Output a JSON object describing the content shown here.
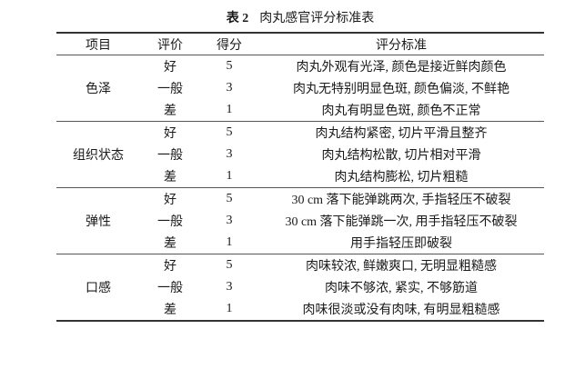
{
  "caption": {
    "label": "表 2",
    "title": "肉丸感官评分标准表"
  },
  "headers": [
    "项目",
    "评价",
    "得分",
    "评分标准"
  ],
  "groups": [
    {
      "name": "色泽",
      "rows": [
        {
          "rating": "好",
          "score": "5",
          "criteria": "肉丸外观有光泽, 颜色是接近鲜肉颜色"
        },
        {
          "rating": "一般",
          "score": "3",
          "criteria": "肉丸无特别明显色斑, 颜色偏淡, 不鲜艳"
        },
        {
          "rating": "差",
          "score": "1",
          "criteria": "肉丸有明显色斑, 颜色不正常"
        }
      ]
    },
    {
      "name": "组织状态",
      "rows": [
        {
          "rating": "好",
          "score": "5",
          "criteria": "肉丸结构紧密, 切片平滑且整齐"
        },
        {
          "rating": "一般",
          "score": "3",
          "criteria": "肉丸结构松散, 切片相对平滑"
        },
        {
          "rating": "差",
          "score": "1",
          "criteria": "肉丸结构膨松, 切片粗糙"
        }
      ]
    },
    {
      "name": "弹性",
      "rows": [
        {
          "rating": "好",
          "score": "5",
          "criteria": "30 cm 落下能弹跳两次, 手指轻压不破裂"
        },
        {
          "rating": "一般",
          "score": "3",
          "criteria": "30 cm 落下能弹跳一次, 用手指轻压不破裂"
        },
        {
          "rating": "差",
          "score": "1",
          "criteria": "用手指轻压即破裂"
        }
      ]
    },
    {
      "name": "口感",
      "rows": [
        {
          "rating": "好",
          "score": "5",
          "criteria": "肉味较浓, 鲜嫩爽口, 无明显粗糙感"
        },
        {
          "rating": "一般",
          "score": "3",
          "criteria": "肉味不够浓, 紧实, 不够筋道"
        },
        {
          "rating": "差",
          "score": "1",
          "criteria": "肉味很淡或没有肉味, 有明显粗糙感"
        }
      ]
    }
  ]
}
